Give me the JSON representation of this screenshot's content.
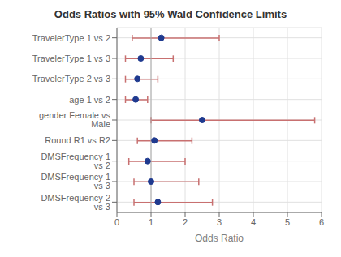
{
  "chart_data": {
    "type": "forest",
    "title": "Odds Ratios with 95% Wald Confidence Limits",
    "x_label": "Odds Ratio",
    "orientation": "horizontal",
    "categories": [
      "TravelerType 1 vs 2",
      "TravelerType 1 vs 3",
      "TravelerType 2 vs 3",
      "age 1 vs 2",
      "gender Female vs Male",
      "Round R1 vs R2",
      "DMSFrequency 1 vs 2",
      "DMSFrequency 1 vs 3",
      "DMSFrequency 2 vs 3"
    ],
    "values": [
      1.3,
      0.7,
      0.6,
      0.55,
      2.5,
      1.1,
      0.9,
      1.0,
      1.2
    ],
    "color": "#1F3A8F",
    "error_bars": {
      "lower": [
        0.45,
        0.25,
        0.25,
        0.25,
        1.0,
        0.6,
        0.35,
        0.5,
        0.5
      ],
      "upper": [
        3.0,
        1.65,
        1.2,
        0.9,
        5.8,
        2.2,
        2.0,
        2.4,
        2.8
      ],
      "color": "#C87070"
    },
    "reference_line": {
      "value": 1,
      "color": "#AAAAAA"
    },
    "xlim": [
      0,
      6
    ],
    "xticks": [
      0,
      1,
      2,
      3,
      4,
      5,
      6
    ],
    "grid": true
  }
}
